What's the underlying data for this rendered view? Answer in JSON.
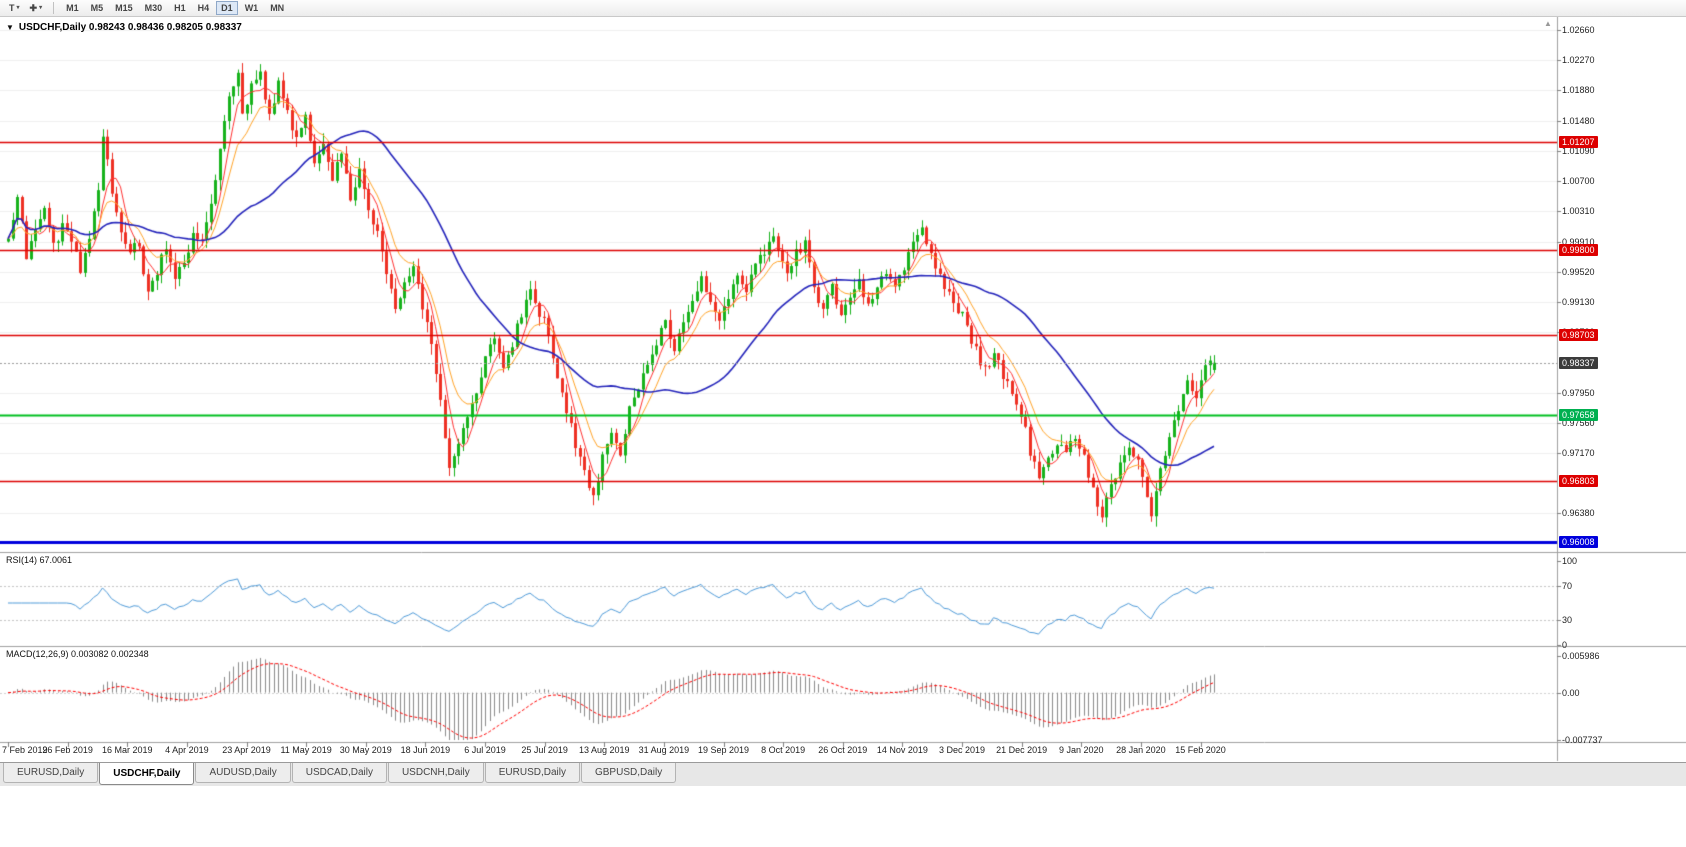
{
  "toolbar": {
    "text_tool": "T",
    "timeframes": [
      "M1",
      "M5",
      "M15",
      "M30",
      "H1",
      "H4",
      "D1",
      "W1",
      "MN"
    ],
    "active_timeframe": "D1"
  },
  "chart_header": {
    "title_line": "USDCHF,Daily 0.98243 0.98436 0.98205 0.98337",
    "symbol": "USDCHF,Daily",
    "open": "0.98243",
    "high": "0.98436",
    "low": "0.98205",
    "close": "0.98337"
  },
  "rsi_panel": {
    "label": "RSI(14) 67.0061",
    "indicator": "RSI",
    "period": 14,
    "value": 67.0061,
    "ticks": [
      {
        "label": "100",
        "value": 100
      },
      {
        "label": "70",
        "value": 70
      },
      {
        "label": "30",
        "value": 30
      },
      {
        "label": "0",
        "value": 0
      }
    ],
    "dotted_levels": [
      70,
      30
    ]
  },
  "macd_panel": {
    "label": "MACD(12,26,9) 0.003082 0.002348",
    "indicator": "MACD",
    "fast": 12,
    "slow": 26,
    "signal_period": 9,
    "main_value": 0.003082,
    "signal_value": 0.002348,
    "ticks": [
      {
        "label": "0.005986",
        "value": 0.005986
      },
      {
        "label": "0.00",
        "value": 0
      },
      {
        "label": "-0.007737",
        "value": -0.007737
      }
    ]
  },
  "price_axis": {
    "ticks": [
      {
        "label": "1.02660",
        "price": 1.0266
      },
      {
        "label": "1.02270",
        "price": 1.0227
      },
      {
        "label": "1.01880",
        "price": 1.0188
      },
      {
        "label": "1.01480",
        "price": 1.0148
      },
      {
        "label": "1.01090",
        "price": 1.0109
      },
      {
        "label": "1.00700",
        "price": 1.007
      },
      {
        "label": "1.00310",
        "price": 1.0031
      },
      {
        "label": "0.99910",
        "price": 0.9991
      },
      {
        "label": "0.99520",
        "price": 0.9952
      },
      {
        "label": "0.99130",
        "price": 0.9913
      },
      {
        "label": "0.98730",
        "price": 0.9873
      },
      {
        "label": "0.97950",
        "price": 0.9795
      },
      {
        "label": "0.97560",
        "price": 0.9756
      },
      {
        "label": "0.97170",
        "price": 0.9717
      },
      {
        "label": "0.96380",
        "price": 0.9638
      }
    ]
  },
  "badges": [
    {
      "label": "1.01207",
      "price": 1.01207,
      "bg": "#dd0000"
    },
    {
      "label": "0.99800",
      "price": 0.998,
      "bg": "#dd0000"
    },
    {
      "label": "0.98703",
      "price": 0.98703,
      "bg": "#dd0000"
    },
    {
      "label": "0.98337",
      "price": 0.98337,
      "bg": "#3c3c3c"
    },
    {
      "label": "0.97658",
      "price": 0.97658,
      "bg": "#00b050"
    },
    {
      "label": "0.96803",
      "price": 0.96803,
      "bg": "#dd0000"
    },
    {
      "label": "0.96008",
      "price": 0.96008,
      "bg": "#0000dd"
    }
  ],
  "date_axis": {
    "labels": [
      "7 Feb 2019",
      "26 Feb 2019",
      "16 Mar 2019",
      "4 Apr 2019",
      "23 Apr 2019",
      "11 May 2019",
      "30 May 2019",
      "18 Jun 2019",
      "6 Jul 2019",
      "25 Jul 2019",
      "13 Aug 2019",
      "31 Aug 2019",
      "19 Sep 2019",
      "8 Oct 2019",
      "26 Oct 2019",
      "14 Nov 2019",
      "3 Dec 2019",
      "21 Dec 2019",
      "9 Jan 2020",
      "28 Jan 2020",
      "15 Feb 2020"
    ]
  },
  "tabs": [
    {
      "label": "EURUSD,Daily",
      "active": false
    },
    {
      "label": "USDCHF,Daily",
      "active": true
    },
    {
      "label": "AUDUSD,Daily",
      "active": false
    },
    {
      "label": "USDCAD,Daily",
      "active": false
    },
    {
      "label": "USDCNH,Daily",
      "active": false
    },
    {
      "label": "EURUSD,Daily",
      "active": false
    },
    {
      "label": "GBPUSD,Daily",
      "active": false
    }
  ],
  "colors": {
    "candle_up": "#17b21c",
    "candle_down": "#ee3024",
    "ma_fast": "#ff3232",
    "ma_mid": "#ffa428",
    "ma_slow": "#2424bb",
    "rsi_line": "#4f9bd9",
    "macd_hist": "#8c8c8c",
    "macd_signal": "#ff0000",
    "level_red": "#dd0000",
    "level_green": "#00c020",
    "level_blue": "#0000dd",
    "grid": "#efefef",
    "separator": "#a0a0a0",
    "current_price_line": "#9a9a9a"
  },
  "chart_data": {
    "type": "candlestick",
    "symbol": "USDCHF",
    "timeframe": "Daily",
    "title": "USDCHF,Daily 0.98243 0.98436 0.98205 0.98337",
    "y_axis_range": [
      0.9588,
      1.0282
    ],
    "num_candles": 269,
    "last_close": 0.98337,
    "ohlc_current": {
      "open": 0.98243,
      "high": 0.98436,
      "low": 0.98205,
      "close": 0.98337
    },
    "price_anchors": [
      [
        0,
        0.999
      ],
      [
        2,
        1.0055
      ],
      [
        4,
        0.997
      ],
      [
        6,
        1.0005
      ],
      [
        8,
        1.004
      ],
      [
        10,
        0.9985
      ],
      [
        12,
        1.001
      ],
      [
        14,
        0.9995
      ],
      [
        16,
        0.995
      ],
      [
        18,
        1.0
      ],
      [
        20,
        1.006
      ],
      [
        21,
        1.0125
      ],
      [
        23,
        1.006
      ],
      [
        25,
        1.001
      ],
      [
        27,
        0.9975
      ],
      [
        29,
        0.999
      ],
      [
        31,
        0.992
      ],
      [
        33,
        0.9955
      ],
      [
        35,
        0.9985
      ],
      [
        37,
        0.994
      ],
      [
        39,
        0.9965
      ],
      [
        41,
        1.0
      ],
      [
        43,
        0.999
      ],
      [
        45,
        1.0045
      ],
      [
        47,
        1.011
      ],
      [
        49,
        1.018
      ],
      [
        51,
        1.0215
      ],
      [
        52,
        1.016
      ],
      [
        54,
        1.019
      ],
      [
        56,
        1.021
      ],
      [
        58,
        1.015
      ],
      [
        60,
        1.0195
      ],
      [
        62,
        1.016
      ],
      [
        64,
        1.012
      ],
      [
        66,
        1.015
      ],
      [
        68,
        1.01
      ],
      [
        70,
        1.012
      ],
      [
        72,
        1.007
      ],
      [
        74,
        1.011
      ],
      [
        76,
        1.005
      ],
      [
        78,
        1.008
      ],
      [
        80,
        1.003
      ],
      [
        82,
        1.0
      ],
      [
        84,
        0.995
      ],
      [
        86,
        0.99
      ],
      [
        88,
        0.9935
      ],
      [
        90,
        0.996
      ],
      [
        92,
        0.99
      ],
      [
        94,
        0.986
      ],
      [
        96,
        0.978
      ],
      [
        98,
        0.97
      ],
      [
        100,
        0.973
      ],
      [
        102,
        0.977
      ],
      [
        104,
        0.98
      ],
      [
        106,
        0.984
      ],
      [
        108,
        0.987
      ],
      [
        110,
        0.983
      ],
      [
        112,
        0.986
      ],
      [
        114,
        0.99
      ],
      [
        116,
        0.993
      ],
      [
        118,
        0.99
      ],
      [
        120,
        0.987
      ],
      [
        122,
        0.982
      ],
      [
        124,
        0.977
      ],
      [
        126,
        0.973
      ],
      [
        128,
        0.969
      ],
      [
        130,
        0.966
      ],
      [
        132,
        0.971
      ],
      [
        134,
        0.974
      ],
      [
        136,
        0.9715
      ],
      [
        138,
        0.977
      ],
      [
        140,
        0.98
      ],
      [
        142,
        0.983
      ],
      [
        144,
        0.986
      ],
      [
        146,
        0.9885
      ],
      [
        148,
        0.985
      ],
      [
        150,
        0.9885
      ],
      [
        152,
        0.991
      ],
      [
        154,
        0.994
      ],
      [
        156,
        0.9915
      ],
      [
        158,
        0.9895
      ],
      [
        160,
        0.992
      ],
      [
        162,
        0.995
      ],
      [
        164,
        0.9925
      ],
      [
        166,
        0.996
      ],
      [
        168,
        0.9975
      ],
      [
        170,
        1.0
      ],
      [
        171,
        0.9985
      ],
      [
        173,
        0.9945
      ],
      [
        175,
        0.9975
      ],
      [
        177,
        0.999
      ],
      [
        179,
        0.993
      ],
      [
        181,
        0.99
      ],
      [
        183,
        0.9935
      ],
      [
        185,
        0.989
      ],
      [
        187,
        0.992
      ],
      [
        189,
        0.9945
      ],
      [
        191,
        0.9905
      ],
      [
        193,
        0.993
      ],
      [
        195,
        0.9955
      ],
      [
        197,
        0.993
      ],
      [
        199,
        0.996
      ],
      [
        201,
        0.9985
      ],
      [
        203,
        1.0005
      ],
      [
        205,
        0.9975
      ],
      [
        207,
        0.9945
      ],
      [
        209,
        0.992
      ],
      [
        211,
        0.9905
      ],
      [
        213,
        0.988
      ],
      [
        215,
        0.985
      ],
      [
        217,
        0.9825
      ],
      [
        219,
        0.9845
      ],
      [
        221,
        0.9815
      ],
      [
        223,
        0.979
      ],
      [
        225,
        0.977
      ],
      [
        227,
        0.972
      ],
      [
        229,
        0.9685
      ],
      [
        231,
        0.9705
      ],
      [
        233,
        0.973
      ],
      [
        235,
        0.9715
      ],
      [
        237,
        0.974
      ],
      [
        239,
        0.971
      ],
      [
        241,
        0.967
      ],
      [
        243,
        0.9635
      ],
      [
        245,
        0.9675
      ],
      [
        247,
        0.9705
      ],
      [
        249,
        0.973
      ],
      [
        251,
        0.9705
      ],
      [
        253,
        0.9665
      ],
      [
        254,
        0.964
      ],
      [
        256,
        0.969
      ],
      [
        258,
        0.974
      ],
      [
        260,
        0.9775
      ],
      [
        262,
        0.9805
      ],
      [
        264,
        0.9795
      ],
      [
        266,
        0.9825
      ],
      [
        268,
        0.98337
      ]
    ],
    "levels": [
      {
        "price": 1.01207,
        "color": "#dd0000",
        "width": 1.3,
        "type": "resistance"
      },
      {
        "price": 0.998,
        "color": "#dd0000",
        "width": 1.3,
        "type": "resistance"
      },
      {
        "price": 0.98703,
        "color": "#dd0000",
        "width": 1.3,
        "type": "resistance"
      },
      {
        "price": 0.97658,
        "color": "#00c020",
        "width": 2,
        "type": "support"
      },
      {
        "price": 0.96803,
        "color": "#dd0000",
        "width": 1.3,
        "type": "support"
      },
      {
        "price": 0.96008,
        "color": "#0000dd",
        "width": 3,
        "type": "support"
      }
    ],
    "moving_averages": [
      {
        "period": 5,
        "method": "sma",
        "color": "#ff3232",
        "width": 1
      },
      {
        "period": 10,
        "method": "ema",
        "color": "#ffa428",
        "width": 1
      },
      {
        "period": 34,
        "method": "sma",
        "color": "#2424bb",
        "width": 1.6
      }
    ],
    "indicators": [
      {
        "name": "RSI",
        "period": 14,
        "current": 67.0061
      },
      {
        "name": "MACD",
        "fast": 12,
        "slow": 26,
        "signal": 9,
        "main_current": 0.003082,
        "signal_current": 0.002348
      }
    ]
  }
}
